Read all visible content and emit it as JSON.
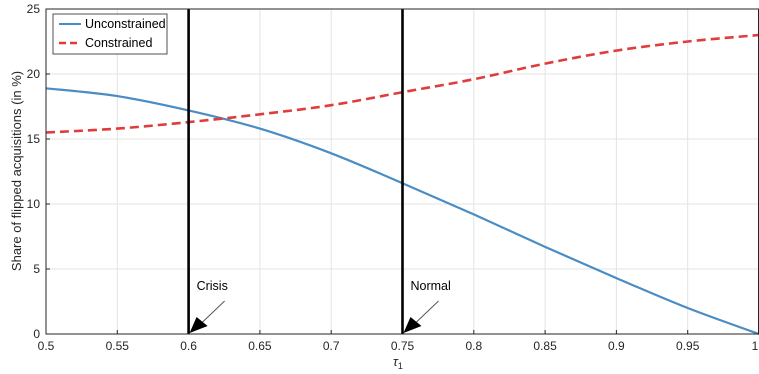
{
  "chart_data": {
    "type": "line",
    "xlabel": "τ",
    "xlabel_sub": "1",
    "ylabel": "Share of flipped acquisitions (in %)",
    "xlim": [
      0.5,
      1.0
    ],
    "ylim": [
      0,
      25
    ],
    "x_ticks": [
      0.5,
      0.55,
      0.6,
      0.65,
      0.7,
      0.75,
      0.8,
      0.85,
      0.9,
      0.95,
      1.0
    ],
    "x_tick_labels": [
      "0.5",
      "0.55",
      "0.6",
      "0.65",
      "0.7",
      "0.75",
      "0.8",
      "0.85",
      "0.9",
      "0.95",
      "1"
    ],
    "y_ticks": [
      0,
      5,
      10,
      15,
      20,
      25
    ],
    "y_tick_labels": [
      "0",
      "5",
      "10",
      "15",
      "20",
      "25"
    ],
    "grid": true,
    "legend_position": "top-left",
    "series": [
      {
        "name": "Unconstrained",
        "color": "#4a8cc4",
        "style": "solid",
        "x": [
          0.5,
          0.55,
          0.6,
          0.65,
          0.7,
          0.75,
          0.8,
          0.85,
          0.9,
          0.95,
          1.0
        ],
        "y": [
          18.9,
          18.3,
          17.2,
          15.8,
          13.9,
          11.6,
          9.2,
          6.7,
          4.3,
          2.0,
          0.0
        ]
      },
      {
        "name": "Constrained",
        "color": "#e03c3c",
        "style": "dashed",
        "x": [
          0.5,
          0.55,
          0.6,
          0.65,
          0.7,
          0.75,
          0.8,
          0.85,
          0.9,
          0.95,
          1.0
        ],
        "y": [
          15.5,
          15.8,
          16.3,
          16.9,
          17.6,
          18.6,
          19.6,
          20.8,
          21.8,
          22.5,
          23.0
        ]
      }
    ],
    "vertical_lines": [
      {
        "x": 0.6,
        "label": "Crisis"
      },
      {
        "x": 0.75,
        "label": "Normal"
      }
    ]
  }
}
